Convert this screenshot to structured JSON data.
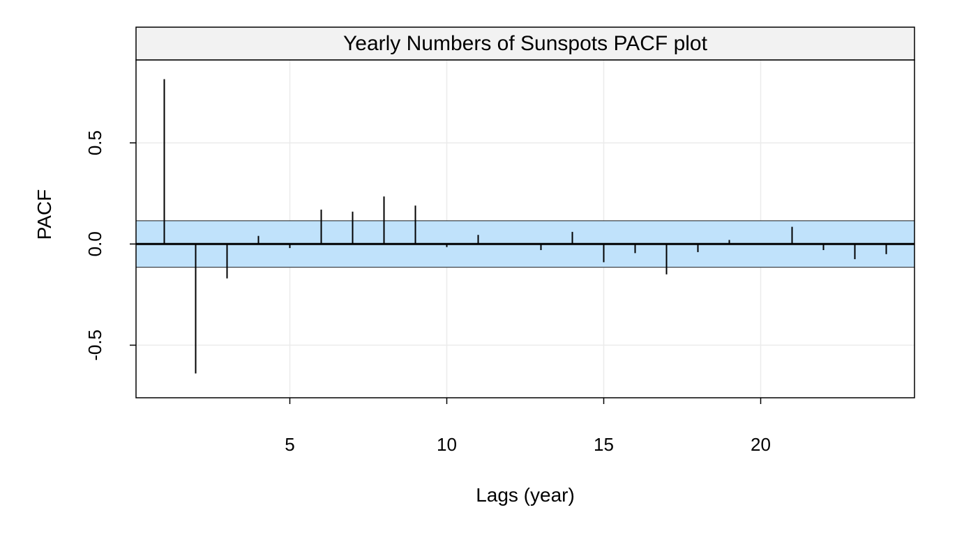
{
  "chart_data": {
    "type": "bar",
    "title": "Yearly Numbers of Sunspots PACF plot",
    "xlabel": "Lags (year)",
    "ylabel": "PACF",
    "xlim": [
      0.1,
      24.9
    ],
    "ylim": [
      -0.76,
      0.91
    ],
    "x_ticks": [
      5,
      10,
      15,
      20
    ],
    "x_tick_labels": [
      "5",
      "10",
      "15",
      "20"
    ],
    "y_ticks": [
      -0.5,
      0.0,
      0.5
    ],
    "y_tick_labels": [
      "-0.5",
      "0.0",
      "0.5"
    ],
    "grid": true,
    "confidence_band": [
      -0.115,
      0.115
    ],
    "lags": [
      1,
      2,
      3,
      4,
      5,
      6,
      7,
      8,
      9,
      10,
      11,
      12,
      13,
      14,
      15,
      16,
      17,
      18,
      19,
      20,
      21,
      22,
      23,
      24
    ],
    "values": [
      0.815,
      -0.64,
      -0.17,
      0.04,
      -0.02,
      0.17,
      0.16,
      0.235,
      0.19,
      -0.015,
      0.045,
      0.0,
      -0.03,
      0.06,
      -0.09,
      -0.045,
      -0.15,
      -0.04,
      0.02,
      0.0,
      0.085,
      -0.03,
      -0.075,
      -0.05
    ],
    "colors": {
      "band": "#c0e2fb",
      "band_edge": "#1a1a1a",
      "strip": "#f2f2f2",
      "grid": "#ebebeb",
      "bars": "#000000"
    }
  }
}
